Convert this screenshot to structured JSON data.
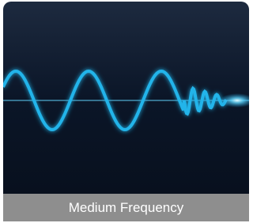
{
  "caption": "Medium Frequency"
}
